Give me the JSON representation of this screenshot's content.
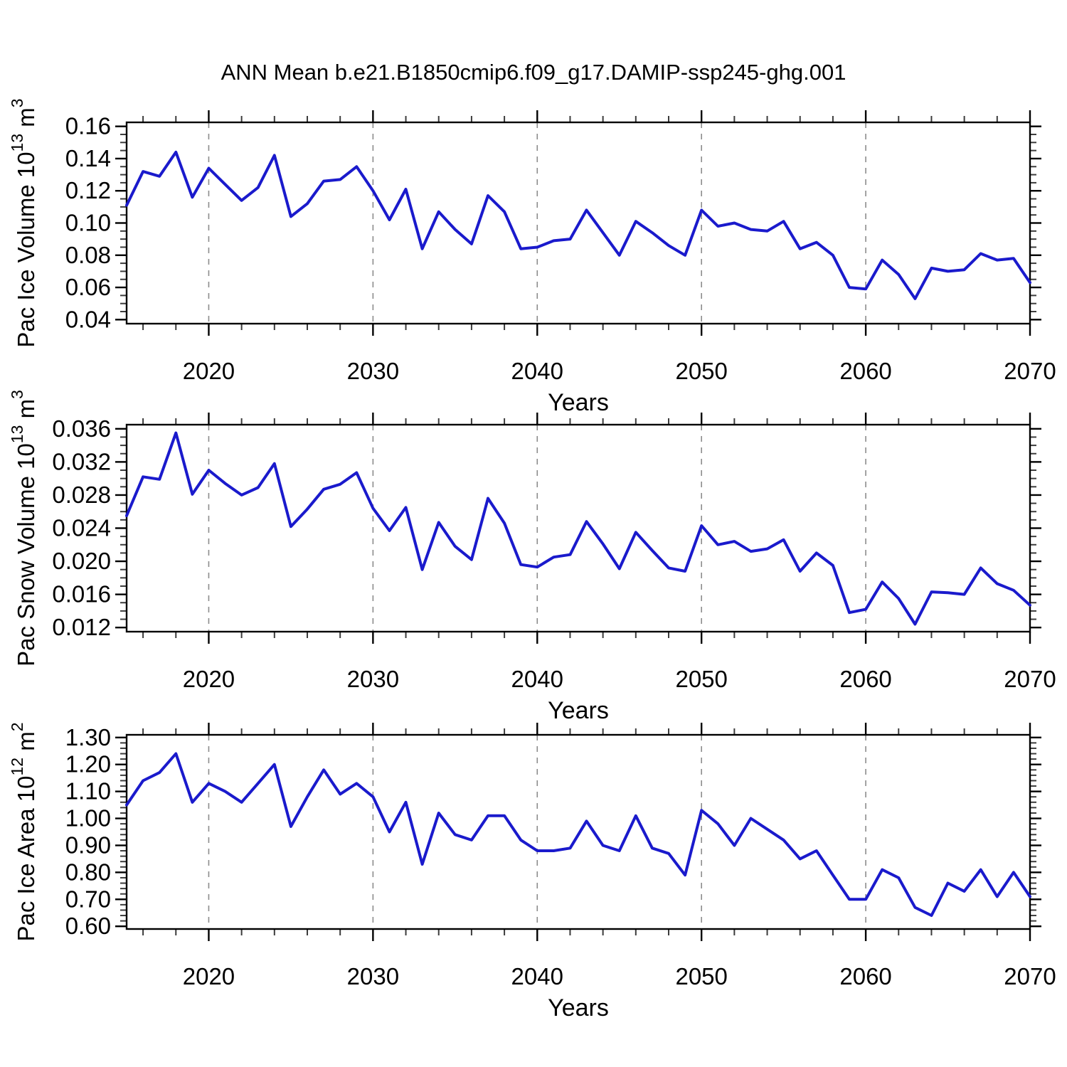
{
  "title": "ANN Mean b.e21.B1850cmip6.f09_g17.DAMIP-ssp245-ghg.001",
  "colors": {
    "line": "#1a1acc",
    "axis": "#000000",
    "grid": "#8c8c8c",
    "minor_tick": "#3c3c3c"
  },
  "chart_data": [
    {
      "type": "line",
      "name": "pac-ice-volume",
      "ylabel": {
        "prefix": "Pac Ice Volume 10",
        "exp": "13",
        "unit": " m",
        "unit_exp": "3"
      },
      "xlabel": "Years",
      "x_start": 2015,
      "x_end": 2070,
      "x_major_ticks": [
        2020,
        2030,
        2040,
        2050,
        2060,
        2070
      ],
      "x_gridlines": [
        2020,
        2030,
        2040,
        2050,
        2060
      ],
      "x_minor_step": 2,
      "y_major_ticks": [
        0.04,
        0.06,
        0.08,
        0.1,
        0.12,
        0.14,
        0.16
      ],
      "y_minor_step": 0.005,
      "y_tick_decimals": 2,
      "ylim": [
        0.0375,
        0.1625
      ],
      "values": [
        0.111,
        0.132,
        0.129,
        0.144,
        0.116,
        0.134,
        0.124,
        0.114,
        0.122,
        0.142,
        0.104,
        0.112,
        0.126,
        0.127,
        0.135,
        0.12,
        0.102,
        0.121,
        0.084,
        0.107,
        0.096,
        0.087,
        0.117,
        0.107,
        0.084,
        0.085,
        0.089,
        0.09,
        0.108,
        0.094,
        0.08,
        0.101,
        0.094,
        0.086,
        0.08,
        0.108,
        0.098,
        0.1,
        0.096,
        0.095,
        0.101,
        0.084,
        0.088,
        0.08,
        0.06,
        0.059,
        0.077,
        0.068,
        0.053,
        0.072,
        0.07,
        0.071,
        0.081,
        0.077,
        0.078,
        0.063
      ]
    },
    {
      "type": "line",
      "name": "pac-snow-volume",
      "ylabel": {
        "prefix": "Pac Snow Volume 10",
        "exp": "13",
        "unit": " m",
        "unit_exp": "3"
      },
      "xlabel": "Years",
      "x_start": 2015,
      "x_end": 2070,
      "x_major_ticks": [
        2020,
        2030,
        2040,
        2050,
        2060,
        2070
      ],
      "x_gridlines": [
        2020,
        2030,
        2040,
        2050,
        2060
      ],
      "x_minor_step": 2,
      "y_major_ticks": [
        0.012,
        0.016,
        0.02,
        0.024,
        0.028,
        0.032,
        0.036
      ],
      "y_minor_step": 0.001,
      "y_tick_decimals": 3,
      "ylim": [
        0.0115,
        0.0365
      ],
      "values": [
        0.0255,
        0.0302,
        0.0299,
        0.0355,
        0.0281,
        0.031,
        0.0294,
        0.028,
        0.0289,
        0.0318,
        0.0242,
        0.0263,
        0.0287,
        0.0293,
        0.0307,
        0.0264,
        0.0237,
        0.0265,
        0.019,
        0.0247,
        0.0218,
        0.0202,
        0.0276,
        0.0246,
        0.0196,
        0.0193,
        0.0205,
        0.0208,
        0.0248,
        0.0221,
        0.0191,
        0.0235,
        0.0213,
        0.0192,
        0.0188,
        0.0243,
        0.022,
        0.0224,
        0.0212,
        0.0215,
        0.0226,
        0.0188,
        0.021,
        0.0195,
        0.0138,
        0.0142,
        0.0175,
        0.0155,
        0.0124,
        0.0163,
        0.0162,
        0.016,
        0.0192,
        0.0173,
        0.0165,
        0.0147
      ]
    },
    {
      "type": "line",
      "name": "pac-ice-area",
      "ylabel": {
        "prefix": "Pac Ice Area 10",
        "exp": "12",
        "unit": " m",
        "unit_exp": "2"
      },
      "xlabel": "Years",
      "x_start": 2015,
      "x_end": 2070,
      "x_major_ticks": [
        2020,
        2030,
        2040,
        2050,
        2060,
        2070
      ],
      "x_gridlines": [
        2020,
        2030,
        2040,
        2050,
        2060
      ],
      "x_minor_step": 2,
      "y_major_ticks": [
        0.6,
        0.7,
        0.8,
        0.9,
        1.0,
        1.1,
        1.2,
        1.3
      ],
      "y_minor_step": 0.02,
      "y_tick_decimals": 2,
      "ylim": [
        0.59,
        1.31
      ],
      "values": [
        1.05,
        1.14,
        1.17,
        1.24,
        1.06,
        1.13,
        1.1,
        1.06,
        1.13,
        1.2,
        0.97,
        1.08,
        1.18,
        1.09,
        1.13,
        1.08,
        0.95,
        1.06,
        0.83,
        1.02,
        0.94,
        0.92,
        1.01,
        1.01,
        0.92,
        0.88,
        0.88,
        0.89,
        0.99,
        0.9,
        0.88,
        1.01,
        0.89,
        0.87,
        0.79,
        1.03,
        0.98,
        0.9,
        1.0,
        0.96,
        0.92,
        0.85,
        0.88,
        0.79,
        0.7,
        0.7,
        0.81,
        0.78,
        0.67,
        0.64,
        0.76,
        0.73,
        0.81,
        0.71,
        0.8,
        0.71
      ]
    }
  ]
}
